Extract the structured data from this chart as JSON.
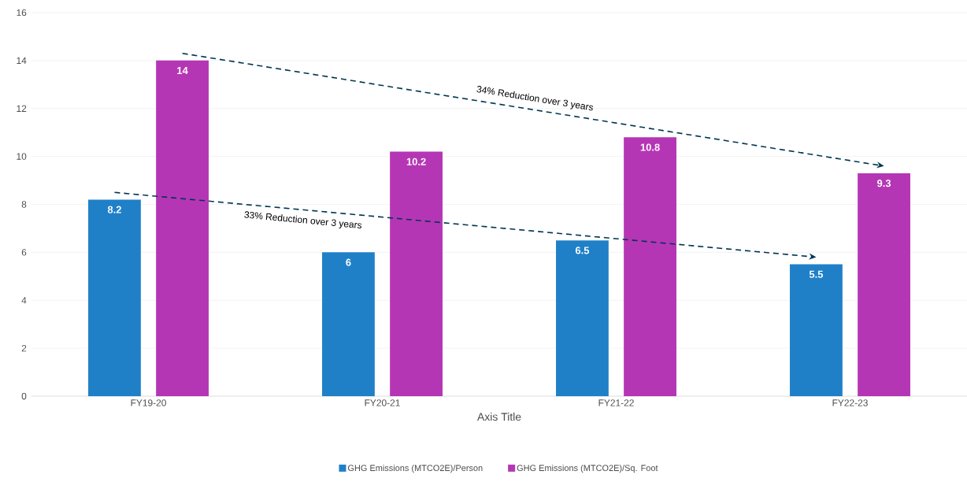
{
  "chart_data": {
    "type": "bar",
    "xlabel": "Axis Title",
    "categories": [
      "FY19-20",
      "FY20-21",
      "FY21-22",
      "FY22-23"
    ],
    "series": [
      {
        "name": "GHG Emissions (MTCO2E)/Person",
        "color": "#1f80c8",
        "values": [
          8.2,
          6,
          6.5,
          5.5
        ]
      },
      {
        "name": "GHG Emissions (MTCO2E)/Sq. Foot",
        "color": "#b536b5",
        "values": [
          14,
          10.2,
          10.8,
          9.3
        ]
      }
    ],
    "ylim": [
      0,
      16
    ],
    "yticks": [
      0,
      2,
      4,
      6,
      8,
      10,
      12,
      14,
      16
    ],
    "grid": "y",
    "legend": "bottom",
    "data_labels": true,
    "annotations": [
      "33% Reduction over 3 years",
      "34% Reduction over 3 years"
    ]
  }
}
